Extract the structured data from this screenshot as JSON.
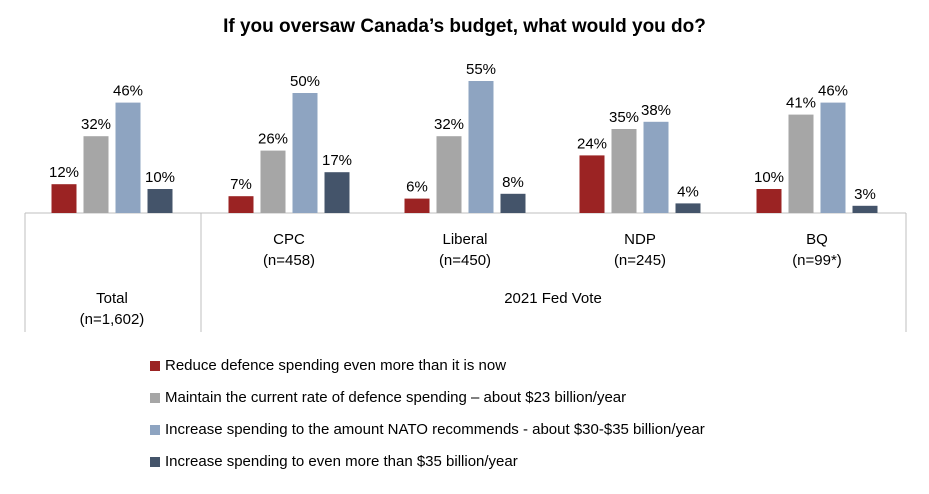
{
  "chart_data": {
    "type": "bar",
    "title": "If you oversaw Canada’s budget, what would you do?",
    "categories": [
      {
        "name": "Total",
        "n": "(n=1,602)"
      },
      {
        "name": "CPC",
        "n": "(n=458)"
      },
      {
        "name": "Liberal",
        "n": "(n=450)"
      },
      {
        "name": "NDP",
        "n": "(n=245)"
      },
      {
        "name": "BQ",
        "n": "(n=99*)"
      }
    ],
    "group_label": "2021 Fed Vote",
    "series": [
      {
        "name": "Reduce defence spending even more than it is now",
        "color": "#9b2323",
        "values": [
          12,
          7,
          6,
          24,
          10
        ]
      },
      {
        "name": "Maintain the current rate of defence spending – about $23 billion/year",
        "color": "#a6a6a6",
        "values": [
          32,
          26,
          32,
          35,
          41
        ]
      },
      {
        "name": "Increase spending to the amount NATO recommends - about $30-$35 billion/year",
        "color": "#8ea4c1",
        "values": [
          46,
          50,
          55,
          38,
          46
        ]
      },
      {
        "name": "Increase spending to even more than $35 billion/year",
        "color": "#44546a",
        "values": [
          10,
          17,
          8,
          4,
          3
        ]
      }
    ],
    "value_suffix": "%",
    "ylim": [
      0,
      60
    ]
  }
}
